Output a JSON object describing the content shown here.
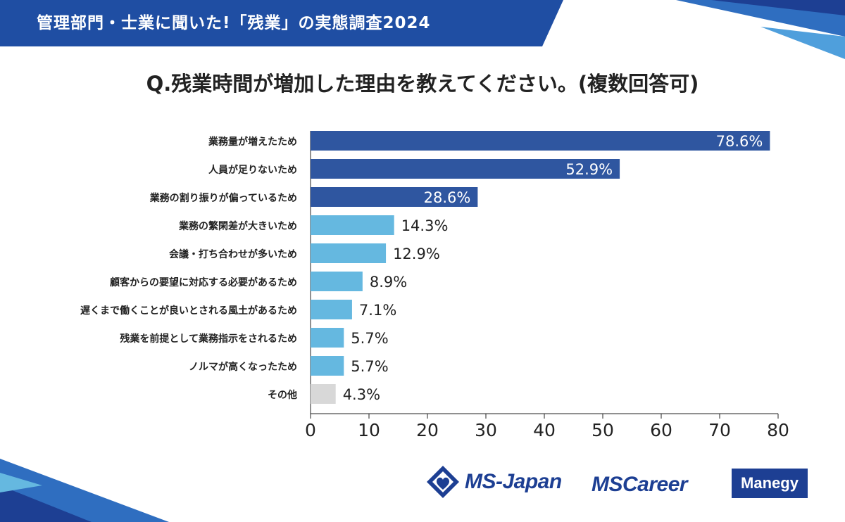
{
  "header": {
    "title": "管理部門・士業に聞いた!「残業」の実態調査2024"
  },
  "question": "Q.残業時間が増加した理由を教えてください。(複数回答可)",
  "colors": {
    "dark": "#2f56a0",
    "light": "#65b8e0",
    "other": "#d8d8d8",
    "brand": "#1d3f93"
  },
  "chart_data": {
    "type": "bar",
    "orientation": "horizontal",
    "title": "Q.残業時間が増加した理由を教えてください。(複数回答可)",
    "categories": [
      "業務量が増えたため",
      "人員が足りないため",
      "業務の割り振りが偏っているため",
      "業務の繁閑差が大きいため",
      "会議・打ち合わせが多いため",
      "顧客からの要望に対応する必要があるため",
      "遅くまで働くことが良いとされる風土があるため",
      "残業を前提として業務指示をされるため",
      "ノルマが高くなったため",
      "その他"
    ],
    "values": [
      78.6,
      52.9,
      28.6,
      14.3,
      12.9,
      8.9,
      7.1,
      5.7,
      5.7,
      4.3
    ],
    "value_labels": [
      "78.6%",
      "52.9%",
      "28.6%",
      "14.3%",
      "12.9%",
      "8.9%",
      "7.1%",
      "5.7%",
      "5.7%",
      "4.3%"
    ],
    "bar_colors": [
      "dark",
      "dark",
      "dark",
      "light",
      "light",
      "light",
      "light",
      "light",
      "light",
      "other"
    ],
    "xlim": [
      0,
      80
    ],
    "xticks": [
      0,
      10,
      20,
      30,
      40,
      50,
      60,
      70,
      80
    ],
    "xlabel": "",
    "ylabel": ""
  },
  "logos": {
    "ms_japan": "MS-Japan",
    "ms_career": "MSCareer",
    "manegy": "Manegy"
  }
}
